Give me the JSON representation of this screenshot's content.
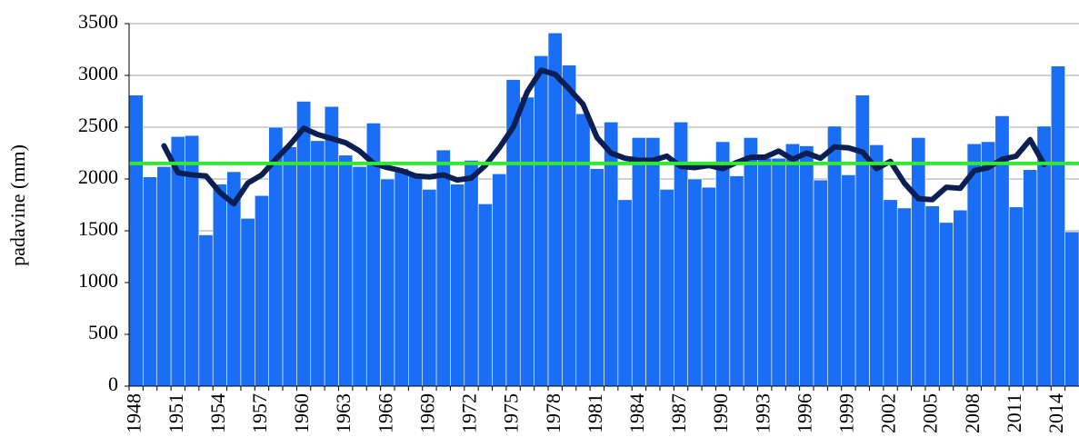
{
  "chart_data": {
    "type": "bar",
    "y_label": "padavine (mm)",
    "categories": [
      "1948",
      null,
      null,
      "1951",
      null,
      null,
      "1954",
      null,
      null,
      "1957",
      null,
      null,
      "1960",
      null,
      null,
      "1963",
      null,
      null,
      "1966",
      null,
      null,
      "1969",
      null,
      null,
      "1972",
      null,
      null,
      "1975",
      null,
      null,
      "1978",
      null,
      null,
      "1981",
      null,
      null,
      "1984",
      null,
      null,
      "1987",
      null,
      null,
      "1990",
      null,
      null,
      "1993",
      null,
      null,
      "1996",
      null,
      null,
      "1999",
      null,
      null,
      "2002",
      null,
      null,
      "2005",
      null,
      null,
      "2008",
      null,
      null,
      "2011",
      null,
      null,
      "2014",
      null
    ],
    "series": [
      {
        "type": "bar",
        "color": "#1a6ef5",
        "values": [
          2810,
          2020,
          2120,
          2410,
          2420,
          1460,
          1950,
          2070,
          1620,
          1840,
          2500,
          2310,
          2750,
          2370,
          2700,
          2230,
          2120,
          2540,
          2000,
          2100,
          2050,
          1900,
          2280,
          1950,
          2180,
          1760,
          2050,
          2960,
          2790,
          3190,
          3410,
          3100,
          2630,
          2100,
          2550,
          1800,
          2400,
          2400,
          1900,
          2550,
          2000,
          1920,
          2360,
          2030,
          2400,
          2200,
          2200,
          2340,
          2320,
          1990,
          2510,
          2040,
          2810,
          2330,
          1800,
          1720,
          2400,
          1740,
          1580,
          1700,
          2340,
          2360,
          2610,
          1730,
          2090,
          2510,
          3090,
          1490
        ]
      },
      {
        "type": "line",
        "color": "#0b1f52",
        "values": [
          null,
          null,
          2320,
          2060,
          2040,
          2030,
          1870,
          1760,
          1960,
          2040,
          2190,
          2330,
          2490,
          2430,
          2390,
          2350,
          2270,
          2150,
          2110,
          2080,
          2030,
          2020,
          2040,
          1990,
          2010,
          2130,
          2300,
          2500,
          2840,
          3050,
          3010,
          2870,
          2720,
          2400,
          2250,
          2200,
          2180,
          2180,
          2220,
          2120,
          2110,
          2130,
          2100,
          2160,
          2210,
          2210,
          2270,
          2190,
          2250,
          2200,
          2310,
          2300,
          2260,
          2100,
          2170,
          1960,
          1810,
          1800,
          1920,
          1910,
          2080,
          2110,
          2190,
          2220,
          2380,
          2140,
          null,
          null
        ]
      }
    ],
    "reference_line": {
      "value": 2150,
      "color": "#33e833"
    },
    "ylim": [
      0,
      3500
    ],
    "yticks": [
      0,
      500,
      1000,
      1500,
      2000,
      2500,
      3000,
      3500
    ],
    "grid": true
  }
}
